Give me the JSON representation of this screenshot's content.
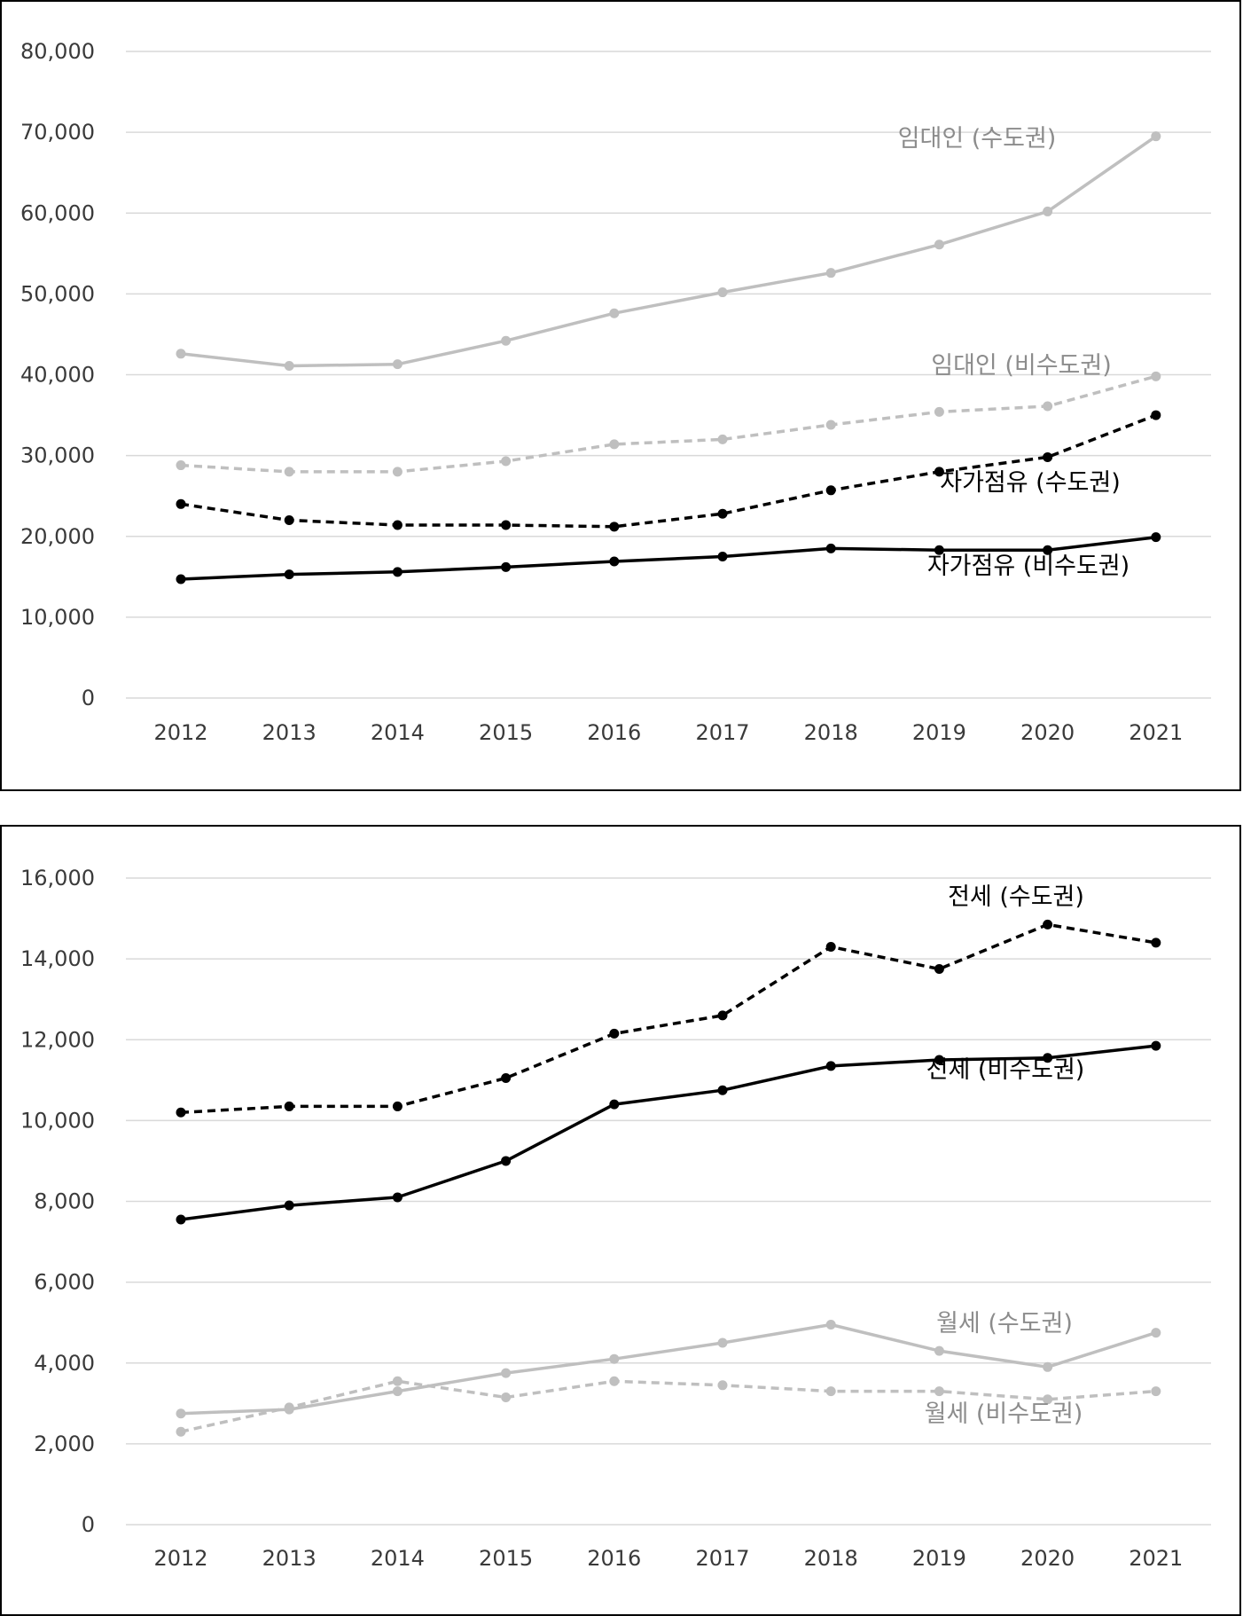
{
  "chart_data": [
    {
      "type": "line",
      "x": [
        "2012",
        "2013",
        "2014",
        "2015",
        "2016",
        "2017",
        "2018",
        "2019",
        "2020",
        "2021"
      ],
      "ylim": [
        0,
        80000
      ],
      "yticks": [
        "0",
        "10,000",
        "20,000",
        "30,000",
        "40,000",
        "50,000",
        "60,000",
        "70,000",
        "80,000"
      ],
      "grid": true,
      "series": [
        {
          "name": "임대인 (수도권)",
          "color": "#bfbfbf",
          "dash": false,
          "values": [
            42600,
            41100,
            41300,
            44200,
            47600,
            50200,
            52600,
            56100,
            60200,
            69500
          ]
        },
        {
          "name": "임대인 (비수도권)",
          "color": "#bfbfbf",
          "dash": true,
          "values": [
            28800,
            28000,
            28000,
            29300,
            31400,
            32000,
            33800,
            35400,
            36100,
            39800
          ]
        },
        {
          "name": "자가점유 (수도권)",
          "color": "#000000",
          "dash": true,
          "values": [
            24000,
            22000,
            21400,
            21400,
            21200,
            22800,
            25700,
            28000,
            29800,
            35000
          ]
        },
        {
          "name": "자가점유 (비수도권)",
          "color": "#000000",
          "dash": false,
          "values": [
            14700,
            15300,
            15600,
            16200,
            16900,
            17500,
            18500,
            18300,
            18300,
            19900
          ]
        }
      ]
    },
    {
      "type": "line",
      "x": [
        "2012",
        "2013",
        "2014",
        "2015",
        "2016",
        "2017",
        "2018",
        "2019",
        "2020",
        "2021"
      ],
      "ylim": [
        0,
        16000
      ],
      "yticks": [
        "0",
        "2,000",
        "4,000",
        "6,000",
        "8,000",
        "10,000",
        "12,000",
        "14,000",
        "16,000"
      ],
      "grid": true,
      "series": [
        {
          "name": "전세 (수도권)",
          "color": "#000000",
          "dash": true,
          "values": [
            10200,
            10350,
            10350,
            11050,
            12150,
            12600,
            14300,
            13750,
            14850,
            14400
          ]
        },
        {
          "name": "전세 (비수도권)",
          "color": "#000000",
          "dash": false,
          "values": [
            7550,
            7900,
            8100,
            9000,
            10400,
            10750,
            11350,
            11500,
            11550,
            11850
          ]
        },
        {
          "name": "월세 (수도권)",
          "color": "#bfbfbf",
          "dash": false,
          "values": [
            2750,
            2850,
            3300,
            3750,
            4100,
            4500,
            4950,
            4300,
            3900,
            4750
          ]
        },
        {
          "name": "월세 (비수도권)",
          "color": "#bfbfbf",
          "dash": true,
          "values": [
            2300,
            2900,
            3550,
            3150,
            3550,
            3450,
            3300,
            3300,
            3100,
            3300
          ]
        }
      ]
    }
  ]
}
